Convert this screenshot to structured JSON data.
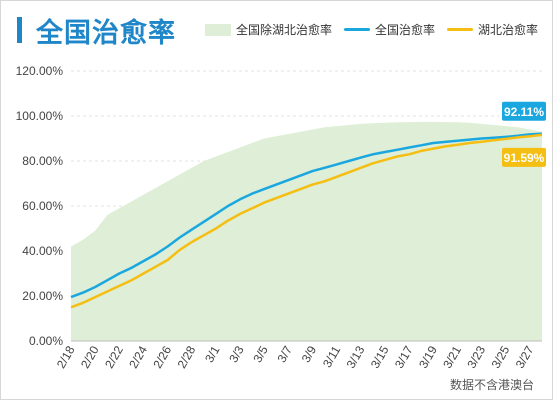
{
  "header": {
    "title": "全国治愈率"
  },
  "legend": {
    "area_label": "全国除湖北治愈率",
    "national_label": "全国治愈率",
    "hubei_label": "湖北治愈率"
  },
  "footnote": "数据不含港澳台",
  "colors": {
    "title": "#1f86c8",
    "area": "#dfeed6",
    "national": "#1aa7e0",
    "hubei": "#f4be12",
    "label_national_bg": "#1aa7e0",
    "label_hubei_bg": "#f4be12"
  },
  "chart_data": {
    "type": "line",
    "x": [
      "2/18",
      "2/19",
      "2/20",
      "2/21",
      "2/22",
      "2/23",
      "2/24",
      "2/25",
      "2/26",
      "2/27",
      "2/28",
      "2/29",
      "3/1",
      "3/2",
      "3/3",
      "3/4",
      "3/5",
      "3/6",
      "3/7",
      "3/8",
      "3/9",
      "3/10",
      "3/11",
      "3/12",
      "3/13",
      "3/14",
      "3/15",
      "3/16",
      "3/17",
      "3/18",
      "3/19",
      "3/20",
      "3/21",
      "3/22",
      "3/23",
      "3/24",
      "3/25",
      "3/26",
      "3/27",
      "3/28"
    ],
    "x_tick_labels": [
      "2/18",
      "2/20",
      "2/22",
      "2/24",
      "2/26",
      "2/28",
      "3/1",
      "3/3",
      "3/5",
      "3/7",
      "3/9",
      "3/11",
      "3/13",
      "3/15",
      "3/17",
      "3/19",
      "3/21",
      "3/23",
      "3/25",
      "3/27"
    ],
    "y_tick_labels": [
      "0.00%",
      "20.00%",
      "40.00%",
      "60.00%",
      "80.00%",
      "100.00%",
      "120.00%"
    ],
    "ylim": [
      0,
      120
    ],
    "grid": true,
    "legend_position": "top-right",
    "series": [
      {
        "name": "全国除湖北治愈率",
        "style": "area",
        "values": [
          42,
          45,
          49,
          56,
          59,
          62,
          65,
          68,
          71,
          74,
          77,
          80,
          82,
          84,
          86,
          88,
          90,
          91,
          92,
          93,
          94,
          95,
          95.5,
          96,
          96.5,
          96.8,
          97,
          97.2,
          97.3,
          97.4,
          97.4,
          97.3,
          97.2,
          97,
          96.5,
          96,
          95.5,
          95,
          94,
          93
        ]
      },
      {
        "name": "全国治愈率",
        "style": "line",
        "values": [
          19.5,
          21.5,
          24,
          27,
          30,
          32.5,
          35.5,
          38.5,
          42,
          46,
          49.5,
          53,
          56.5,
          60,
          63,
          65.5,
          67.5,
          69.5,
          71.5,
          73.5,
          75.5,
          77,
          78.5,
          80,
          81.5,
          83,
          84,
          85,
          86,
          87,
          88,
          88.5,
          89,
          89.5,
          90,
          90.3,
          90.7,
          91.2,
          91.8,
          92.11
        ]
      },
      {
        "name": "湖北治愈率",
        "style": "line",
        "values": [
          15,
          17,
          19.5,
          22,
          24.5,
          27,
          30,
          33,
          36,
          40.5,
          44,
          47,
          50,
          53.5,
          56.5,
          59,
          61.5,
          63.5,
          65.5,
          67.5,
          69.5,
          71,
          73,
          75,
          77,
          79,
          80.5,
          82,
          83,
          84.5,
          85.5,
          86.5,
          87.2,
          88,
          88.6,
          89.2,
          89.8,
          90.5,
          91,
          91.59
        ]
      }
    ],
    "end_labels": {
      "national": "92.11%",
      "hubei": "91.59%"
    }
  }
}
